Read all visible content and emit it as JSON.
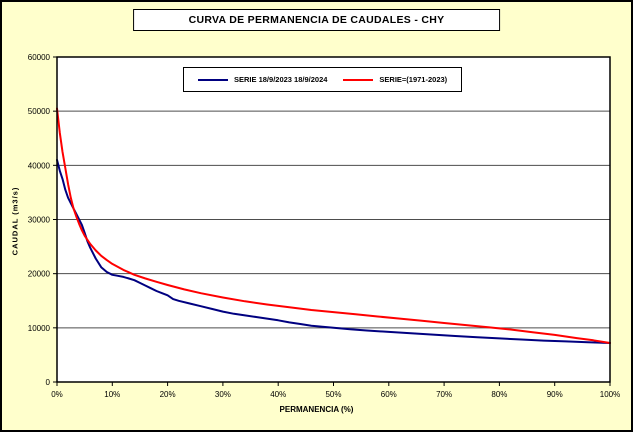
{
  "window": {
    "background_color": "#ffffcc",
    "plot_background_color": "#ffffff",
    "border_color": "#000000"
  },
  "chart_data": {
    "type": "line",
    "title": "CURVA DE PERMANENCIA DE CAUDALES - CHY",
    "xlabel": "PERMANENCIA (%)",
    "ylabel": "CAUDAL (m3/s)",
    "xlim": [
      0,
      100
    ],
    "ylim": [
      0,
      60000
    ],
    "x_ticks": [
      "0%",
      "10%",
      "20%",
      "30%",
      "40%",
      "50%",
      "60%",
      "70%",
      "80%",
      "90%",
      "100%"
    ],
    "y_ticks": [
      0,
      10000,
      20000,
      30000,
      40000,
      50000,
      60000
    ],
    "grid": "horizontal-only",
    "gridline_color": "#4d4d4d",
    "legend_position": "top-center-inside",
    "series": [
      {
        "name": "SERIE 18/9/2023 18/9/2024",
        "color": "#000080",
        "points": [
          [
            0,
            41000
          ],
          [
            0.5,
            39000
          ],
          [
            1,
            37500
          ],
          [
            1.5,
            35500
          ],
          [
            2,
            34000
          ],
          [
            2.5,
            33000
          ],
          [
            3,
            32000
          ],
          [
            3.5,
            31000
          ],
          [
            4,
            30000
          ],
          [
            4.5,
            29000
          ],
          [
            5,
            27500
          ],
          [
            5.5,
            26000
          ],
          [
            6,
            24800
          ],
          [
            7,
            22800
          ],
          [
            8,
            21200
          ],
          [
            9,
            20300
          ],
          [
            10,
            19800
          ],
          [
            11,
            19600
          ],
          [
            12,
            19400
          ],
          [
            13,
            19100
          ],
          [
            14,
            18800
          ],
          [
            15,
            18300
          ],
          [
            16,
            17800
          ],
          [
            17,
            17300
          ],
          [
            18,
            16800
          ],
          [
            19,
            16400
          ],
          [
            20,
            16000
          ],
          [
            21,
            15300
          ],
          [
            22,
            15000
          ],
          [
            24,
            14500
          ],
          [
            26,
            14000
          ],
          [
            28,
            13500
          ],
          [
            30,
            13000
          ],
          [
            32,
            12600
          ],
          [
            34,
            12300
          ],
          [
            36,
            12000
          ],
          [
            38,
            11700
          ],
          [
            40,
            11400
          ],
          [
            42,
            11000
          ],
          [
            44,
            10700
          ],
          [
            46,
            10400
          ],
          [
            48,
            10200
          ],
          [
            50,
            10000
          ],
          [
            53,
            9750
          ],
          [
            56,
            9500
          ],
          [
            60,
            9250
          ],
          [
            64,
            9000
          ],
          [
            68,
            8750
          ],
          [
            72,
            8500
          ],
          [
            76,
            8250
          ],
          [
            80,
            8050
          ],
          [
            84,
            7850
          ],
          [
            88,
            7650
          ],
          [
            92,
            7500
          ],
          [
            96,
            7350
          ],
          [
            100,
            7200
          ]
        ]
      },
      {
        "name": "SERIE=(1971-2023)",
        "color": "#ff0000",
        "points": [
          [
            0,
            50500
          ],
          [
            0.5,
            46000
          ],
          [
            1,
            42500
          ],
          [
            1.5,
            39500
          ],
          [
            2,
            36500
          ],
          [
            2.5,
            34000
          ],
          [
            3,
            32000
          ],
          [
            3.5,
            30500
          ],
          [
            4,
            29200
          ],
          [
            4.5,
            28000
          ],
          [
            5,
            27000
          ],
          [
            6,
            25500
          ],
          [
            7,
            24300
          ],
          [
            8,
            23300
          ],
          [
            9,
            22500
          ],
          [
            10,
            21800
          ],
          [
            12,
            20700
          ],
          [
            14,
            19800
          ],
          [
            16,
            19100
          ],
          [
            18,
            18500
          ],
          [
            20,
            17900
          ],
          [
            23,
            17100
          ],
          [
            26,
            16400
          ],
          [
            30,
            15600
          ],
          [
            34,
            14900
          ],
          [
            38,
            14300
          ],
          [
            42,
            13800
          ],
          [
            46,
            13300
          ],
          [
            50,
            12900
          ],
          [
            54,
            12500
          ],
          [
            58,
            12100
          ],
          [
            62,
            11700
          ],
          [
            66,
            11300
          ],
          [
            70,
            10900
          ],
          [
            74,
            10500
          ],
          [
            78,
            10100
          ],
          [
            82,
            9700
          ],
          [
            86,
            9200
          ],
          [
            90,
            8700
          ],
          [
            94,
            8100
          ],
          [
            97,
            7700
          ],
          [
            100,
            7200
          ]
        ]
      }
    ]
  }
}
